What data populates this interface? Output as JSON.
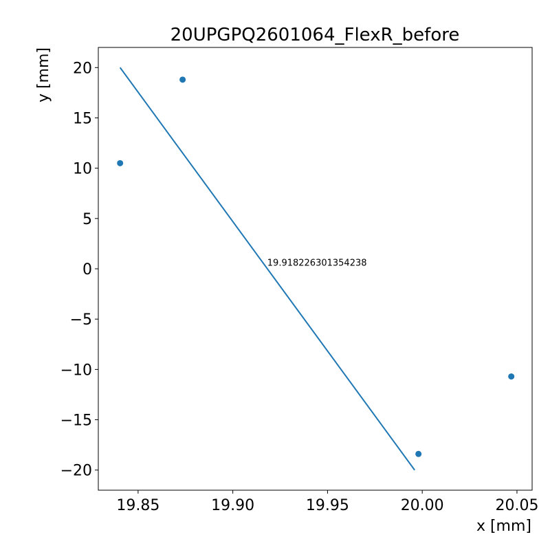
{
  "chart_data": {
    "type": "scatter",
    "title": "20UPGPQ2601064_FlexR_before",
    "xlabel": "x [mm]",
    "ylabel": "y [mm]",
    "xlim": [
      19.829,
      20.058
    ],
    "ylim": [
      -22.0,
      22.0
    ],
    "xticks": [
      19.85,
      19.9,
      19.95,
      20.0,
      20.05
    ],
    "xtick_labels": [
      "19.85",
      "19.90",
      "19.95",
      "20.00",
      "20.05"
    ],
    "yticks": [
      20,
      15,
      10,
      5,
      0,
      -5,
      -10,
      -15,
      -20
    ],
    "ytick_labels": [
      "20",
      "15",
      "10",
      "5",
      "0",
      "−5",
      "−10",
      "−15",
      "−20"
    ],
    "grid": false,
    "series": [
      {
        "kind": "scatter",
        "color": "#1f77b4",
        "points": [
          {
            "x": 19.8405,
            "y": 10.5
          },
          {
            "x": 19.8735,
            "y": 18.8
          },
          {
            "x": 19.998,
            "y": -18.4
          },
          {
            "x": 20.047,
            "y": -10.7
          }
        ]
      },
      {
        "kind": "line",
        "color": "#1f77b4",
        "points": [
          {
            "x": 19.8405,
            "y": 20.0
          },
          {
            "x": 19.996,
            "y": -20.0
          }
        ]
      }
    ],
    "annotations": [
      {
        "text": "19.918226301354238",
        "x": 19.9182,
        "y": 0.3
      }
    ]
  }
}
